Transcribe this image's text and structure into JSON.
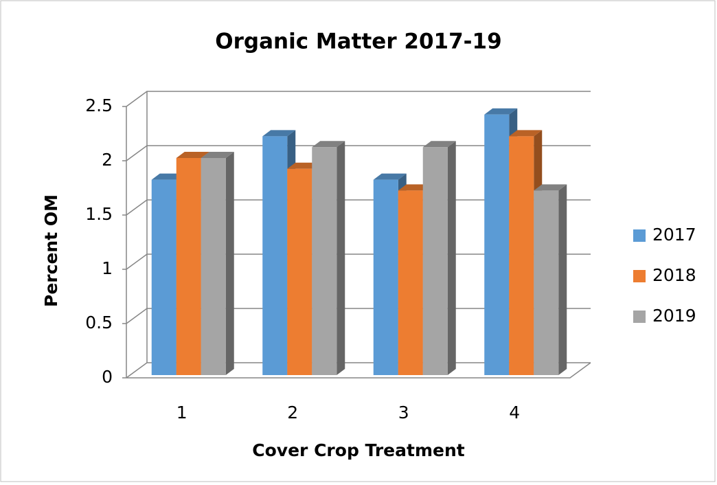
{
  "chart_data": {
    "type": "bar3d",
    "title": "Organic Matter 2017-19",
    "x_label": "Cover Crop Treatment",
    "y_label": "Percent OM",
    "categories": [
      "1",
      "2",
      "3",
      "4"
    ],
    "series": [
      {
        "name": "2017",
        "color": "#5b9bd5",
        "values": [
          1.8,
          2.2,
          1.8,
          2.4
        ]
      },
      {
        "name": "2018",
        "color": "#ed7d31",
        "values": [
          2.0,
          1.9,
          1.7,
          2.2
        ]
      },
      {
        "name": "2019",
        "color": "#a5a5a5",
        "values": [
          2.0,
          2.1,
          2.1,
          1.7
        ]
      }
    ],
    "ylim": [
      0,
      2.5
    ],
    "yticks": [
      0,
      0.5,
      1,
      1.5,
      2,
      2.5
    ],
    "grid": true,
    "legend": "right"
  }
}
